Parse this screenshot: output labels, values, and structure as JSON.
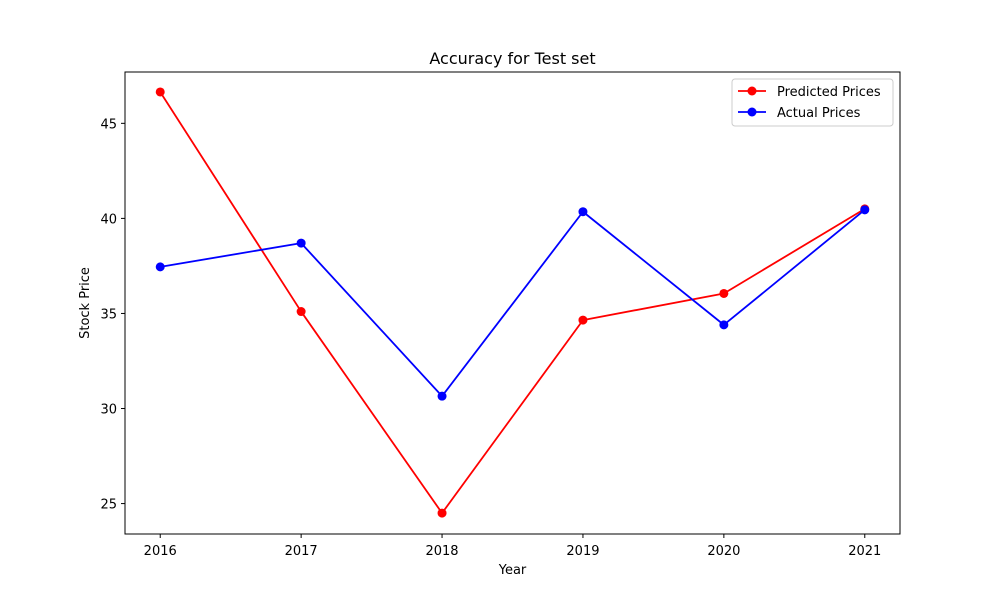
{
  "chart_data": {
    "type": "line",
    "title": "Accuracy for Test set",
    "xlabel": "Year",
    "ylabel": "Stock Price",
    "x": [
      2016,
      2017,
      2018,
      2019,
      2020,
      2021
    ],
    "x_tick_labels": [
      "2016",
      "2017",
      "2018",
      "2019",
      "2020",
      "2021"
    ],
    "y_ticks": [
      25,
      30,
      35,
      40,
      45
    ],
    "y_tick_labels": [
      "25",
      "30",
      "35",
      "40",
      "45"
    ],
    "xlim": [
      2015.75,
      2021.25
    ],
    "ylim": [
      23.4,
      47.7
    ],
    "grid": false,
    "legend_position": "top-right",
    "series": [
      {
        "name": "Predicted Prices",
        "color": "#ff0000",
        "marker": "circle",
        "values": [
          46.65,
          35.1,
          24.5,
          34.65,
          36.05,
          40.5
        ]
      },
      {
        "name": "Actual Prices",
        "color": "#0000ff",
        "marker": "circle",
        "values": [
          37.45,
          38.7,
          30.65,
          40.35,
          34.4,
          40.45
        ]
      }
    ]
  }
}
